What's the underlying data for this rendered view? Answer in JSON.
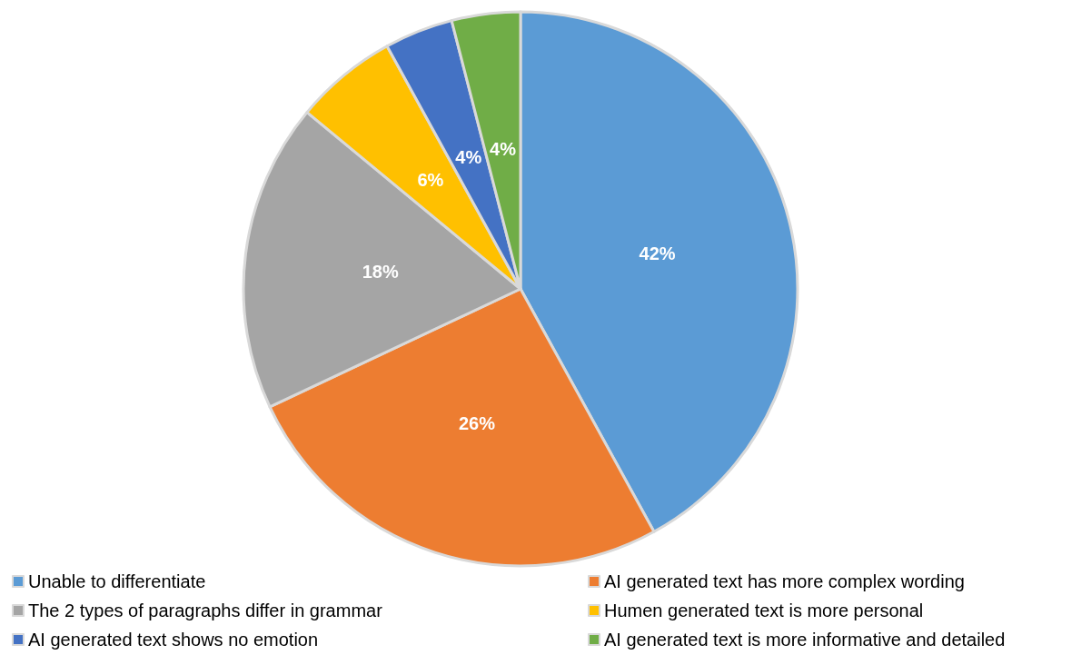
{
  "chart_data": {
    "type": "pie",
    "categories": [
      "Unable to differentiate",
      "AI generated text has more complex wording",
      "The 2 types of paragraphs differ in grammar",
      "Humen generated text is more personal",
      "AI generated text shows no emotion",
      "AI generated text is more informative and detailed"
    ],
    "values": [
      42,
      26,
      18,
      6,
      4,
      4
    ],
    "colors": [
      "#5b9bd5",
      "#ed7d31",
      "#a5a5a5",
      "#ffc000",
      "#4472c4",
      "#70ad47"
    ],
    "value_labels": [
      "42%",
      "26%",
      "18%",
      "6%",
      "4%",
      "4%"
    ],
    "legend": "bottom"
  }
}
